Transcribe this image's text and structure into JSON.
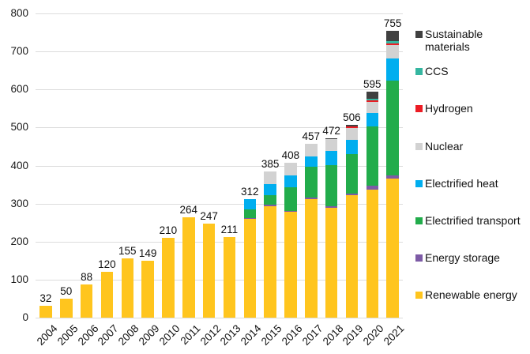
{
  "chart_data": {
    "type": "bar",
    "stacked": true,
    "title": "",
    "xlabel": "",
    "ylabel": "",
    "ylim": [
      0,
      800
    ],
    "y_ticks": [
      0,
      100,
      200,
      300,
      400,
      500,
      600,
      700,
      800
    ],
    "grid": true,
    "gridline_color": "#DCDCDC",
    "text_color": "#111111",
    "background": "#FFFFFF",
    "categories": [
      "2004",
      "2005",
      "2006",
      "2007",
      "2008",
      "2009",
      "2010",
      "2011",
      "2012",
      "2013",
      "2014",
      "2015",
      "2016",
      "2017",
      "2018",
      "2019",
      "2020",
      "2021"
    ],
    "totals": [
      32,
      50,
      88,
      120,
      155,
      149,
      210,
      264,
      247,
      211,
      312,
      385,
      408,
      457,
      472,
      506,
      595,
      755
    ],
    "series": [
      {
        "name": "Renewable energy",
        "color": "#FFC51E",
        "values": [
          32,
          50,
          88,
          120,
          155,
          149,
          210,
          264,
          247,
          211,
          260,
          294,
          279,
          312,
          288,
          322,
          337,
          366
        ]
      },
      {
        "name": "Energy storage",
        "color": "#7D5BA6",
        "values": [
          0,
          0,
          0,
          0,
          0,
          0,
          0,
          0,
          0,
          0,
          2,
          3,
          2,
          4,
          4,
          5,
          9,
          8
        ]
      },
      {
        "name": "Electrified transport",
        "color": "#22AC4B",
        "values": [
          0,
          0,
          0,
          0,
          0,
          0,
          0,
          0,
          0,
          0,
          23,
          25,
          62,
          80,
          110,
          104,
          156,
          250
        ]
      },
      {
        "name": "Electrified heat",
        "color": "#00AEEF",
        "values": [
          0,
          0,
          0,
          0,
          0,
          0,
          0,
          0,
          0,
          0,
          27,
          30,
          31,
          28,
          37,
          37,
          37,
          58
        ]
      },
      {
        "name": "Nuclear",
        "color": "#D2D2D2",
        "values": [
          0,
          0,
          0,
          0,
          0,
          0,
          0,
          0,
          0,
          0,
          0,
          33,
          34,
          33,
          30,
          30,
          29,
          35
        ]
      },
      {
        "name": "Hydrogen",
        "color": "#EC1C24",
        "values": [
          0,
          0,
          0,
          0,
          0,
          0,
          0,
          0,
          0,
          0,
          0,
          0,
          0,
          0,
          0,
          4,
          4,
          5
        ]
      },
      {
        "name": "CCS",
        "color": "#35B6A0",
        "values": [
          0,
          0,
          0,
          0,
          0,
          0,
          0,
          0,
          0,
          0,
          0,
          0,
          0,
          0,
          0,
          0,
          4,
          5
        ]
      },
      {
        "name": "Sustainable materials",
        "color": "#404040",
        "values": [
          0,
          0,
          0,
          0,
          0,
          0,
          0,
          0,
          0,
          0,
          0,
          0,
          0,
          0,
          3,
          4,
          19,
          28
        ]
      }
    ],
    "legend": {
      "position": "right",
      "items": [
        {
          "label": "Sustainable materials",
          "lines": [
            "Sustainable",
            "materials"
          ],
          "color": "#404040"
        },
        {
          "label": "CCS",
          "lines": [
            "CCS"
          ],
          "color": "#35B6A0"
        },
        {
          "label": "Hydrogen",
          "lines": [
            "Hydrogen"
          ],
          "color": "#EC1C24"
        },
        {
          "label": "Nuclear",
          "lines": [
            "Nuclear"
          ],
          "color": "#D2D2D2"
        },
        {
          "label": "Electrified heat",
          "lines": [
            "Electrified heat"
          ],
          "color": "#00AEEF"
        },
        {
          "label": "Electrified transport",
          "lines": [
            "Electrified transport"
          ],
          "color": "#22AC4B"
        },
        {
          "label": "Energy storage",
          "lines": [
            "Energy storage"
          ],
          "color": "#7D5BA6"
        },
        {
          "label": "Renewable energy",
          "lines": [
            "Renewable energy"
          ],
          "color": "#FFC51E"
        }
      ]
    }
  }
}
